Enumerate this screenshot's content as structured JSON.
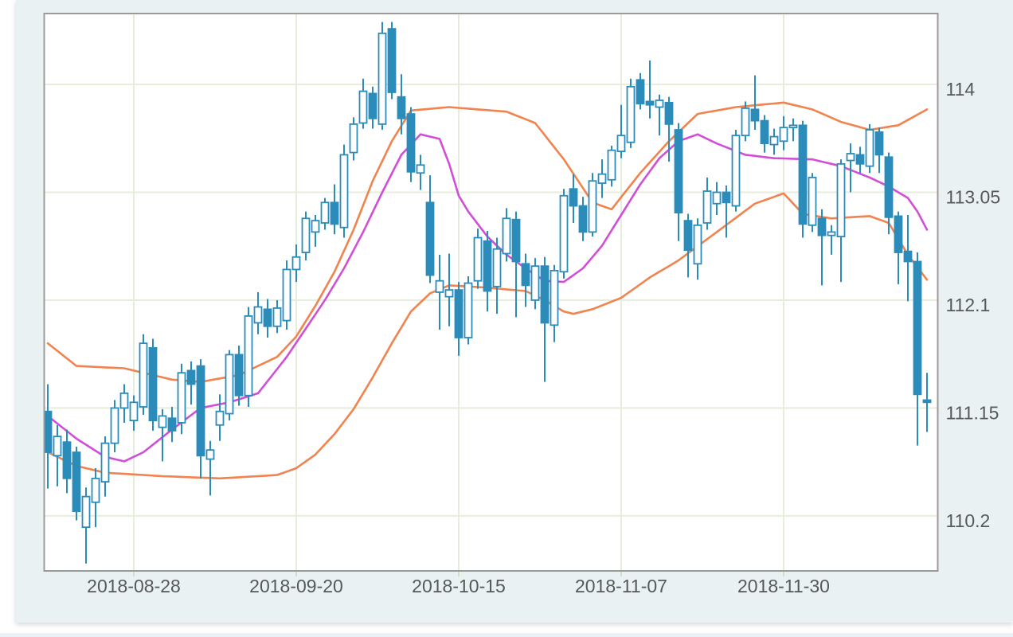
{
  "chart_data": {
    "type": "candlestick",
    "title": "",
    "x_tick_labels": [
      "2018-08-28",
      "2018-09-20",
      "2018-10-15",
      "2018-11-07",
      "2018-11-30"
    ],
    "x_tick_bar_index": [
      9,
      26,
      43,
      60,
      77
    ],
    "y_tick_labels": [
      "114",
      "113.05",
      "112.1",
      "111.15",
      "110.2"
    ],
    "y_tick_values": [
      114,
      113.05,
      112.1,
      111.15,
      110.2
    ],
    "ylim": [
      109.72,
      114.62
    ],
    "grid": true,
    "legend_position": "none",
    "colors": {
      "candle": "#2b8cba",
      "up_body_fill": "#ffffff",
      "band_outer": "#f0834e",
      "band_middle": "#d14fd6",
      "grid": "#e5eedb",
      "plot_bg": "#ffffff",
      "panel_bg": "#e9f1f3",
      "border": "#9a9a9a",
      "tick_text": "#57585a"
    },
    "candles": [
      [
        "2018-08-15",
        111.12,
        111.36,
        110.44,
        110.76
      ],
      [
        "2018-08-16",
        110.73,
        111.0,
        110.46,
        110.9
      ],
      [
        "2018-08-17",
        110.85,
        110.96,
        110.4,
        110.53
      ],
      [
        "2018-08-20",
        110.76,
        110.81,
        110.16,
        110.24
      ],
      [
        "2018-08-21",
        110.1,
        110.45,
        109.78,
        110.37
      ],
      [
        "2018-08-22",
        110.32,
        110.62,
        110.1,
        110.53
      ],
      [
        "2018-08-23",
        110.5,
        110.9,
        110.37,
        110.84
      ],
      [
        "2018-08-24",
        110.84,
        111.22,
        110.76,
        111.15
      ],
      [
        "2018-08-27",
        111.15,
        111.36,
        111.02,
        111.28
      ],
      [
        "2018-08-28",
        111.04,
        111.26,
        110.95,
        111.2
      ],
      [
        "2018-08-29",
        111.16,
        111.8,
        111.09,
        111.72
      ],
      [
        "2018-08-30",
        111.68,
        111.76,
        110.95,
        111.04
      ],
      [
        "2018-08-31",
        110.98,
        111.14,
        110.68,
        111.08
      ],
      [
        "2018-09-03",
        111.06,
        111.16,
        110.85,
        110.95
      ],
      [
        "2018-09-04",
        111.02,
        111.54,
        110.92,
        111.46
      ],
      [
        "2018-09-05",
        111.48,
        111.56,
        111.18,
        111.36
      ],
      [
        "2018-09-06",
        111.52,
        111.58,
        110.53,
        110.73
      ],
      [
        "2018-09-07",
        110.7,
        110.86,
        110.38,
        110.78
      ],
      [
        "2018-09-10",
        111.0,
        111.27,
        110.86,
        111.12
      ],
      [
        "2018-09-11",
        111.1,
        111.66,
        111.04,
        111.62
      ],
      [
        "2018-09-12",
        111.62,
        111.7,
        111.17,
        111.26
      ],
      [
        "2018-09-13",
        111.26,
        112.04,
        111.16,
        111.96
      ],
      [
        "2018-09-14",
        111.9,
        112.17,
        111.8,
        112.04
      ],
      [
        "2018-09-17",
        112.02,
        112.11,
        111.77,
        111.87
      ],
      [
        "2018-09-18",
        111.87,
        112.1,
        111.81,
        112.03
      ],
      [
        "2018-09-19",
        111.92,
        112.45,
        111.84,
        112.37
      ],
      [
        "2018-09-20",
        112.37,
        112.59,
        112.26,
        112.48
      ],
      [
        "2018-09-21",
        112.52,
        112.88,
        112.45,
        112.82
      ],
      [
        "2018-09-24",
        112.7,
        112.85,
        112.57,
        112.8
      ],
      [
        "2018-09-25",
        112.78,
        113.0,
        112.72,
        112.96
      ],
      [
        "2018-09-26",
        112.96,
        113.12,
        112.68,
        112.77
      ],
      [
        "2018-09-27",
        112.74,
        113.47,
        112.65,
        113.38
      ],
      [
        "2018-09-28",
        113.4,
        113.71,
        113.33,
        113.65
      ],
      [
        "2018-10-01",
        113.66,
        114.05,
        113.61,
        113.94
      ],
      [
        "2018-10-02",
        113.92,
        113.98,
        113.61,
        113.7
      ],
      [
        "2018-10-03",
        113.65,
        114.55,
        113.6,
        114.45
      ],
      [
        "2018-10-04",
        114.49,
        114.55,
        113.87,
        113.93
      ],
      [
        "2018-10-05",
        113.89,
        114.09,
        113.56,
        113.7
      ],
      [
        "2018-10-08",
        113.74,
        113.8,
        113.14,
        113.23
      ],
      [
        "2018-10-09",
        113.22,
        113.38,
        113.07,
        113.29
      ],
      [
        "2018-10-10",
        112.96,
        113.2,
        112.25,
        112.32
      ],
      [
        "2018-10-11",
        112.17,
        112.5,
        111.84,
        112.27
      ],
      [
        "2018-10-12",
        112.13,
        112.51,
        111.87,
        112.19
      ],
      [
        "2018-10-15",
        112.19,
        112.26,
        111.61,
        111.77
      ],
      [
        "2018-10-16",
        111.77,
        112.31,
        111.71,
        112.25
      ],
      [
        "2018-10-17",
        112.27,
        112.73,
        112.2,
        112.65
      ],
      [
        "2018-10-18",
        112.62,
        112.71,
        112.0,
        112.18
      ],
      [
        "2018-10-19",
        112.22,
        112.65,
        111.98,
        112.55
      ],
      [
        "2018-10-22",
        112.51,
        112.91,
        112.44,
        112.82
      ],
      [
        "2018-10-23",
        112.81,
        112.88,
        111.95,
        112.44
      ],
      [
        "2018-10-24",
        112.42,
        112.51,
        112.04,
        112.23
      ],
      [
        "2018-10-25",
        112.1,
        112.47,
        112.02,
        112.4
      ],
      [
        "2018-10-26",
        112.4,
        112.48,
        111.38,
        111.9
      ],
      [
        "2018-10-29",
        111.88,
        112.41,
        111.73,
        112.36
      ],
      [
        "2018-10-30",
        112.35,
        113.08,
        112.29,
        113.02
      ],
      [
        "2018-10-31",
        113.08,
        113.21,
        112.78,
        112.93
      ],
      [
        "2018-11-01",
        112.93,
        113.01,
        112.62,
        112.7
      ],
      [
        "2018-11-02",
        112.7,
        113.22,
        112.66,
        113.15
      ],
      [
        "2018-11-05",
        113.13,
        113.34,
        113.0,
        113.21
      ],
      [
        "2018-11-06",
        113.16,
        113.46,
        113.1,
        113.42
      ],
      [
        "2018-11-07",
        113.41,
        113.82,
        113.35,
        113.55
      ],
      [
        "2018-11-08",
        113.49,
        114.05,
        113.44,
        113.98
      ],
      [
        "2018-11-09",
        114.04,
        114.1,
        113.78,
        113.83
      ],
      [
        "2018-11-12",
        113.85,
        114.21,
        113.7,
        113.82
      ],
      [
        "2018-11-13",
        113.8,
        113.91,
        113.55,
        113.86
      ],
      [
        "2018-11-14",
        113.84,
        113.89,
        113.32,
        113.65
      ],
      [
        "2018-11-15",
        113.6,
        113.66,
        112.62,
        112.87
      ],
      [
        "2018-11-16",
        112.8,
        112.86,
        112.3,
        112.54
      ],
      [
        "2018-11-19",
        112.42,
        112.82,
        112.28,
        112.76
      ],
      [
        "2018-11-20",
        112.78,
        113.18,
        112.72,
        113.06
      ],
      [
        "2018-11-21",
        112.95,
        113.14,
        112.85,
        113.05
      ],
      [
        "2018-11-22",
        113.05,
        113.11,
        112.65,
        112.96
      ],
      [
        "2018-11-23",
        112.93,
        113.6,
        112.88,
        113.55
      ],
      [
        "2018-11-26",
        113.55,
        113.85,
        113.5,
        113.79
      ],
      [
        "2018-11-27",
        113.78,
        114.08,
        113.6,
        113.68
      ],
      [
        "2018-11-28",
        113.68,
        113.73,
        113.4,
        113.48
      ],
      [
        "2018-11-29",
        113.47,
        113.61,
        113.38,
        113.54
      ],
      [
        "2018-11-30",
        113.5,
        113.72,
        113.42,
        113.62
      ],
      [
        "2018-12-03",
        113.62,
        113.7,
        113.5,
        113.64
      ],
      [
        "2018-12-04",
        113.64,
        113.68,
        112.65,
        112.77
      ],
      [
        "2018-12-05",
        112.76,
        113.22,
        112.7,
        113.18
      ],
      [
        "2018-12-06",
        112.82,
        112.9,
        112.23,
        112.67
      ],
      [
        "2018-12-07",
        112.67,
        112.76,
        112.5,
        112.7
      ],
      [
        "2018-12-10",
        112.66,
        113.34,
        112.26,
        113.3
      ],
      [
        "2018-12-11",
        113.33,
        113.48,
        113.05,
        113.39
      ],
      [
        "2018-12-12",
        113.38,
        113.45,
        113.22,
        113.3
      ],
      [
        "2018-12-13",
        113.28,
        113.65,
        113.22,
        113.6
      ],
      [
        "2018-12-14",
        113.58,
        113.62,
        113.22,
        113.38
      ],
      [
        "2018-12-17",
        113.36,
        113.4,
        112.68,
        112.83
      ],
      [
        "2018-12-18",
        112.84,
        112.88,
        112.24,
        112.52
      ],
      [
        "2018-12-19",
        112.53,
        112.85,
        112.09,
        112.44
      ],
      [
        "2018-12-20",
        112.44,
        112.52,
        110.82,
        111.27
      ],
      [
        "2018-12-21",
        111.22,
        111.46,
        110.94,
        111.2
      ]
    ],
    "bollinger": {
      "upper_points": [
        [
          0,
          111.72
        ],
        [
          3,
          111.52
        ],
        [
          8,
          111.5
        ],
        [
          13,
          111.4
        ],
        [
          16,
          111.38
        ],
        [
          20,
          111.44
        ],
        [
          24,
          111.6
        ],
        [
          26,
          111.78
        ],
        [
          28,
          112.05
        ],
        [
          30,
          112.35
        ],
        [
          32,
          112.72
        ],
        [
          34,
          113.15
        ],
        [
          36,
          113.5
        ],
        [
          38,
          113.77
        ],
        [
          42,
          113.8
        ],
        [
          48,
          113.76
        ],
        [
          51,
          113.66
        ],
        [
          54,
          113.34
        ],
        [
          57,
          112.96
        ],
        [
          59,
          112.9
        ],
        [
          62,
          113.22
        ],
        [
          65,
          113.5
        ],
        [
          68,
          113.74
        ],
        [
          72,
          113.8
        ],
        [
          77,
          113.84
        ],
        [
          80,
          113.78
        ],
        [
          83,
          113.67
        ],
        [
          86,
          113.6
        ],
        [
          89,
          113.64
        ],
        [
          92,
          113.78
        ]
      ],
      "middle_points": [
        [
          0,
          111.08
        ],
        [
          3,
          110.88
        ],
        [
          6,
          110.72
        ],
        [
          8,
          110.68
        ],
        [
          10,
          110.76
        ],
        [
          13,
          110.96
        ],
        [
          16,
          111.15
        ],
        [
          19,
          111.2
        ],
        [
          22,
          111.28
        ],
        [
          25,
          111.6
        ],
        [
          27,
          111.85
        ],
        [
          29,
          112.1
        ],
        [
          31,
          112.38
        ],
        [
          33,
          112.7
        ],
        [
          35,
          113.05
        ],
        [
          37,
          113.38
        ],
        [
          39,
          113.56
        ],
        [
          41,
          113.52
        ],
        [
          42,
          113.3
        ],
        [
          43,
          113.02
        ],
        [
          44,
          112.88
        ],
        [
          46,
          112.66
        ],
        [
          48,
          112.5
        ],
        [
          50,
          112.38
        ],
        [
          52,
          112.27
        ],
        [
          54,
          112.26
        ],
        [
          56,
          112.38
        ],
        [
          58,
          112.58
        ],
        [
          60,
          112.85
        ],
        [
          62,
          113.12
        ],
        [
          64,
          113.35
        ],
        [
          66,
          113.5
        ],
        [
          68,
          113.56
        ],
        [
          70,
          113.48
        ],
        [
          73,
          113.38
        ],
        [
          76,
          113.35
        ],
        [
          80,
          113.34
        ],
        [
          83,
          113.28
        ],
        [
          86,
          113.18
        ],
        [
          88,
          113.1
        ],
        [
          90,
          113.0
        ],
        [
          91,
          112.88
        ],
        [
          92,
          112.72
        ]
      ],
      "lower_points": [
        [
          0,
          110.76
        ],
        [
          3,
          110.64
        ],
        [
          6,
          110.58
        ],
        [
          12,
          110.55
        ],
        [
          18,
          110.53
        ],
        [
          24,
          110.56
        ],
        [
          26,
          110.62
        ],
        [
          28,
          110.74
        ],
        [
          30,
          110.92
        ],
        [
          32,
          111.14
        ],
        [
          34,
          111.42
        ],
        [
          36,
          111.72
        ],
        [
          38,
          112.0
        ],
        [
          40,
          112.16
        ],
        [
          42,
          112.23
        ],
        [
          46,
          112.21
        ],
        [
          50,
          112.18
        ],
        [
          52,
          112.1
        ],
        [
          54,
          112.0
        ],
        [
          55,
          111.98
        ],
        [
          57,
          112.02
        ],
        [
          60,
          112.12
        ],
        [
          63,
          112.3
        ],
        [
          66,
          112.45
        ],
        [
          70,
          112.7
        ],
        [
          74,
          112.95
        ],
        [
          77,
          113.04
        ],
        [
          79,
          112.86
        ],
        [
          82,
          112.82
        ],
        [
          86,
          112.84
        ],
        [
          88,
          112.78
        ],
        [
          90,
          112.5
        ],
        [
          92,
          112.28
        ]
      ]
    }
  }
}
